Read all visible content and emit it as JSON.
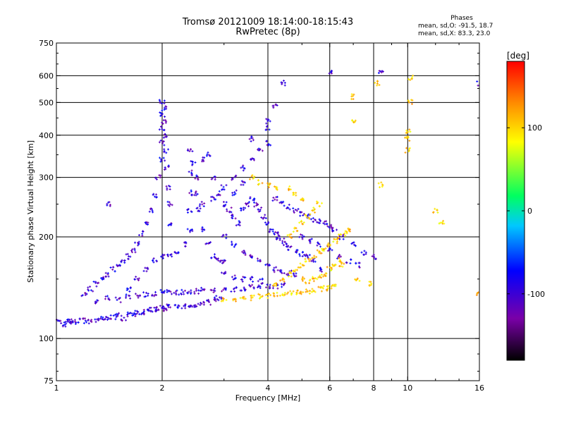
{
  "header": {
    "title_line1": "Tromsø 20121009 18:14:00-18:15:43",
    "title_line2": "RwPretec (8p)",
    "phase_heading": "Phases",
    "stat_o": "mean, sd,O: -91.5, 18.7",
    "stat_x": "mean, sd,X: 83.3, 23.0"
  },
  "chart_data": {
    "type": "scatter",
    "title": "Tromsø 20121009 18:14:00-18:15:43",
    "subtitle": "RwPretec (8p)",
    "xlabel": "Frequency [MHz]",
    "ylabel": "Stationary phase Virtual Height [km]",
    "x_scale": "log",
    "y_scale": "log",
    "xlim": [
      1,
      16
    ],
    "ylim": [
      75,
      750
    ],
    "x_ticks": [
      1,
      2,
      4,
      6,
      8,
      10,
      16
    ],
    "x_tick_labels": [
      "1",
      "2",
      "4",
      "6",
      "8",
      "10",
      "16"
    ],
    "y_ticks": [
      75,
      100,
      200,
      300,
      400,
      500,
      600,
      750
    ],
    "y_tick_labels": [
      "75",
      "100",
      "200",
      "300",
      "400",
      "500",
      "600",
      "750"
    ],
    "grid_x": [
      2,
      4,
      6,
      8,
      10
    ],
    "grid_y": [
      100,
      200,
      300,
      400,
      500,
      600
    ],
    "colorbar": {
      "label": "[deg]",
      "ticks": [
        100,
        0,
        -100
      ],
      "tick_labels": [
        "100",
        "0",
        "-100"
      ],
      "range": [
        -180,
        180
      ],
      "colors": [
        "#000000",
        "#7a00a8",
        "#0000ff",
        "#00c8ff",
        "#00ff60",
        "#ffff00",
        "#ff8c00",
        "#ff0000"
      ]
    },
    "series": [
      {
        "name": "O",
        "phase": -100,
        "points": [
          [
            1.02,
            112
          ],
          [
            1.05,
            110
          ],
          [
            1.08,
            113
          ],
          [
            1.1,
            112
          ],
          [
            1.12,
            112
          ],
          [
            1.15,
            113
          ],
          [
            1.2,
            113
          ],
          [
            1.25,
            112
          ],
          [
            1.3,
            113
          ],
          [
            1.35,
            114
          ],
          [
            1.4,
            115
          ],
          [
            1.45,
            116
          ],
          [
            1.5,
            117
          ],
          [
            1.55,
            115
          ],
          [
            1.6,
            118
          ],
          [
            1.65,
            117
          ],
          [
            1.7,
            119
          ],
          [
            1.75,
            120
          ],
          [
            1.8,
            121
          ],
          [
            1.85,
            122
          ],
          [
            1.9,
            122
          ],
          [
            1.95,
            123
          ],
          [
            2.0,
            122
          ],
          [
            2.05,
            123
          ],
          [
            2.1,
            124
          ],
          [
            2.2,
            124
          ],
          [
            2.3,
            125
          ],
          [
            2.4,
            124
          ],
          [
            2.5,
            126
          ],
          [
            2.6,
            127
          ],
          [
            2.7,
            128
          ],
          [
            2.8,
            130
          ],
          [
            2.9,
            132
          ],
          [
            1.3,
            128
          ],
          [
            1.4,
            132
          ],
          [
            1.5,
            130
          ],
          [
            1.6,
            133
          ],
          [
            1.7,
            134
          ],
          [
            1.8,
            135
          ],
          [
            1.9,
            136
          ],
          [
            2.0,
            137
          ],
          [
            2.1,
            137
          ],
          [
            2.2,
            137
          ],
          [
            2.3,
            137
          ],
          [
            2.4,
            138
          ],
          [
            2.5,
            138
          ],
          [
            2.6,
            139
          ],
          [
            2.8,
            139
          ],
          [
            3.0,
            140
          ],
          [
            3.2,
            140
          ],
          [
            3.4,
            141
          ],
          [
            3.6,
            142
          ],
          [
            3.8,
            143
          ],
          [
            4.0,
            143
          ],
          [
            4.2,
            143
          ],
          [
            4.4,
            144
          ],
          [
            1.2,
            135
          ],
          [
            1.25,
            140
          ],
          [
            1.3,
            145
          ],
          [
            1.35,
            150
          ],
          [
            1.4,
            155
          ],
          [
            1.45,
            160
          ],
          [
            1.5,
            165
          ],
          [
            1.55,
            170
          ],
          [
            1.6,
            175
          ],
          [
            1.65,
            182
          ],
          [
            1.7,
            190
          ],
          [
            1.75,
            205
          ],
          [
            1.8,
            220
          ],
          [
            1.85,
            240
          ],
          [
            1.9,
            265
          ],
          [
            1.95,
            300
          ],
          [
            2.0,
            340
          ],
          [
            2.0,
            380
          ],
          [
            2.0,
            420
          ],
          [
            2.0,
            460
          ],
          [
            2.0,
            500
          ],
          [
            2.02,
            480
          ],
          [
            2.03,
            440
          ],
          [
            2.05,
            400
          ],
          [
            2.05,
            360
          ],
          [
            2.06,
            320
          ],
          [
            2.08,
            280
          ],
          [
            2.1,
            250
          ],
          [
            2.1,
            220
          ],
          [
            1.6,
            140
          ],
          [
            1.7,
            150
          ],
          [
            1.8,
            160
          ],
          [
            1.9,
            170
          ],
          [
            2.0,
            175
          ],
          [
            2.1,
            175
          ],
          [
            2.2,
            180
          ],
          [
            2.3,
            190
          ],
          [
            2.4,
            210
          ],
          [
            2.4,
            240
          ],
          [
            2.4,
            270
          ],
          [
            2.4,
            310
          ],
          [
            2.4,
            360
          ],
          [
            2.45,
            330
          ],
          [
            2.5,
            300
          ],
          [
            2.5,
            270
          ],
          [
            2.55,
            240
          ],
          [
            2.6,
            210
          ],
          [
            2.7,
            190
          ],
          [
            2.8,
            175
          ],
          [
            2.9,
            170
          ],
          [
            3.0,
            168
          ],
          [
            2.6,
            340
          ],
          [
            2.7,
            350
          ],
          [
            2.8,
            300
          ],
          [
            2.9,
            270
          ],
          [
            3.0,
            250
          ],
          [
            3.1,
            240
          ],
          [
            3.2,
            230
          ],
          [
            3.3,
            220
          ],
          [
            3.4,
            240
          ],
          [
            3.5,
            250
          ],
          [
            3.6,
            260
          ],
          [
            3.7,
            250
          ],
          [
            3.8,
            240
          ],
          [
            3.9,
            230
          ],
          [
            4.0,
            220
          ],
          [
            4.1,
            210
          ],
          [
            4.2,
            205
          ],
          [
            4.3,
            200
          ],
          [
            4.4,
            195
          ],
          [
            4.5,
            190
          ],
          [
            4.6,
            185
          ],
          [
            4.8,
            180
          ],
          [
            5.0,
            178
          ],
          [
            5.2,
            175
          ],
          [
            5.4,
            170
          ],
          [
            5.6,
            160
          ],
          [
            3.0,
            200
          ],
          [
            3.2,
            190
          ],
          [
            3.4,
            180
          ],
          [
            3.6,
            175
          ],
          [
            3.8,
            170
          ],
          [
            4.0,
            165
          ],
          [
            4.2,
            160
          ],
          [
            4.4,
            158
          ],
          [
            4.6,
            156
          ],
          [
            4.8,
            155
          ],
          [
            3.0,
            155
          ],
          [
            3.2,
            152
          ],
          [
            3.4,
            150
          ],
          [
            3.6,
            150
          ],
          [
            3.8,
            148
          ],
          [
            2.6,
            250
          ],
          [
            2.8,
            260
          ],
          [
            3.0,
            280
          ],
          [
            3.2,
            300
          ],
          [
            3.4,
            320
          ],
          [
            3.6,
            340
          ],
          [
            3.8,
            360
          ],
          [
            4.0,
            380
          ],
          [
            4.0,
            420
          ],
          [
            3.6,
            390
          ],
          [
            3.4,
            290
          ],
          [
            3.2,
            270
          ],
          [
            4.2,
            260
          ],
          [
            4.4,
            250
          ],
          [
            4.6,
            245
          ],
          [
            4.8,
            240
          ],
          [
            5.0,
            235
          ],
          [
            5.2,
            230
          ],
          [
            5.4,
            225
          ],
          [
            5.6,
            222
          ],
          [
            5.8,
            220
          ],
          [
            6.0,
            215
          ],
          [
            6.2,
            210
          ],
          [
            6.5,
            200
          ],
          [
            7.0,
            190
          ],
          [
            7.5,
            180
          ],
          [
            8.0,
            175
          ],
          [
            5.0,
            200
          ],
          [
            5.3,
            195
          ],
          [
            5.6,
            190
          ],
          [
            6.0,
            185
          ],
          [
            6.4,
            175
          ],
          [
            6.8,
            170
          ],
          [
            7.2,
            165
          ],
          [
            1.4,
            250
          ],
          [
            4.4,
            570
          ],
          [
            4.2,
            490
          ],
          [
            4.0,
            440
          ],
          [
            6.0,
            620
          ],
          [
            8.4,
            610
          ],
          [
            16,
            570
          ]
        ]
      },
      {
        "name": "X",
        "phase": 100,
        "points": [
          [
            3.0,
            130
          ],
          [
            3.2,
            131
          ],
          [
            3.4,
            131
          ],
          [
            3.6,
            132
          ],
          [
            3.8,
            133
          ],
          [
            4.0,
            134
          ],
          [
            4.2,
            135
          ],
          [
            4.4,
            136
          ],
          [
            4.6,
            136
          ],
          [
            4.8,
            137
          ],
          [
            5.0,
            137
          ],
          [
            5.2,
            138
          ],
          [
            5.4,
            139
          ],
          [
            5.6,
            140
          ],
          [
            5.8,
            141
          ],
          [
            6.0,
            142
          ],
          [
            6.2,
            143
          ],
          [
            4.2,
            145
          ],
          [
            4.4,
            150
          ],
          [
            4.6,
            155
          ],
          [
            4.8,
            160
          ],
          [
            5.0,
            165
          ],
          [
            5.2,
            170
          ],
          [
            5.4,
            175
          ],
          [
            5.6,
            180
          ],
          [
            5.8,
            185
          ],
          [
            6.0,
            190
          ],
          [
            6.2,
            195
          ],
          [
            6.4,
            200
          ],
          [
            6.6,
            205
          ],
          [
            6.8,
            210
          ],
          [
            4.6,
            200
          ],
          [
            4.8,
            210
          ],
          [
            5.0,
            220
          ],
          [
            5.2,
            230
          ],
          [
            5.4,
            240
          ],
          [
            5.6,
            250
          ],
          [
            5.0,
            260
          ],
          [
            4.8,
            270
          ],
          [
            4.6,
            280
          ],
          [
            3.6,
            300
          ],
          [
            3.8,
            290
          ],
          [
            4.0,
            285
          ],
          [
            4.2,
            280
          ],
          [
            5.0,
            150
          ],
          [
            5.2,
            148
          ],
          [
            5.4,
            150
          ],
          [
            5.6,
            152
          ],
          [
            5.8,
            155
          ],
          [
            6.0,
            160
          ],
          [
            6.2,
            165
          ],
          [
            6.4,
            170
          ],
          [
            7.0,
            520
          ],
          [
            7.0,
            440
          ],
          [
            8.2,
            570
          ],
          [
            8.4,
            285
          ],
          [
            10.2,
            590
          ],
          [
            10.2,
            500
          ],
          [
            10.0,
            410
          ],
          [
            10.0,
            390
          ],
          [
            10.0,
            360
          ],
          [
            12.0,
            240
          ],
          [
            12.5,
            220
          ],
          [
            16,
            135
          ],
          [
            6.5,
            165
          ],
          [
            7.2,
            150
          ],
          [
            7.8,
            145
          ]
        ]
      }
    ]
  }
}
